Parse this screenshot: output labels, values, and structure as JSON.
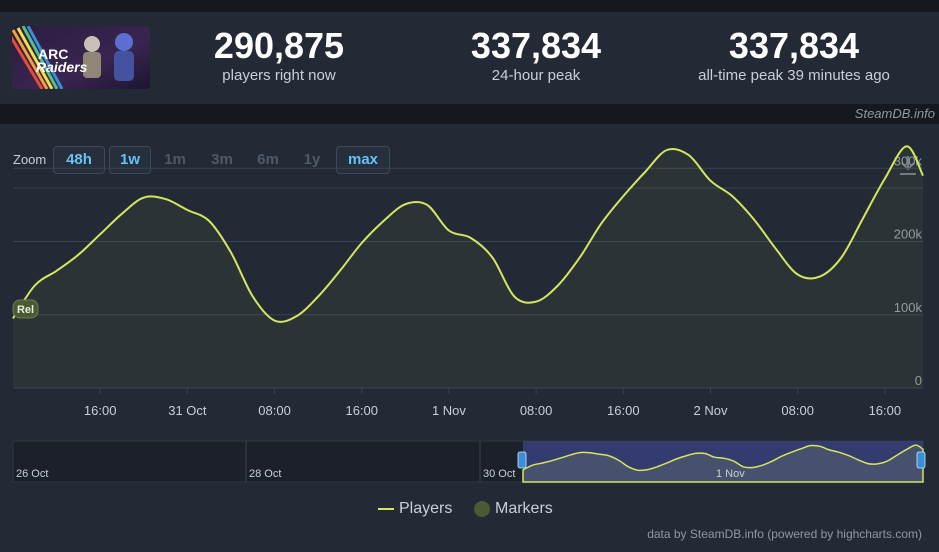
{
  "stats": [
    {
      "value": "290,875",
      "label": "players right now"
    },
    {
      "value": "337,834",
      "label": "24-hour peak"
    },
    {
      "value": "337,834",
      "label": "all-time peak 39 minutes ago"
    }
  ],
  "thumbnail": {
    "title": "ARC Raiders"
  },
  "credit": "SteamDB.info",
  "zoom": {
    "label": "Zoom",
    "options": [
      {
        "label": "48h",
        "active": true
      },
      {
        "label": "1w",
        "active": true
      },
      {
        "label": "1m",
        "active": false
      },
      {
        "label": "3m",
        "active": false
      },
      {
        "label": "6m",
        "active": false
      },
      {
        "label": "1y",
        "active": false
      },
      {
        "label": "max",
        "active": true
      }
    ]
  },
  "chart_data": {
    "type": "line",
    "series": [
      {
        "name": "Players",
        "color": "#d2e75f",
        "x": [
          "10-30 08:00",
          "10-30 10:00",
          "10-30 12:00",
          "10-30 14:00",
          "10-30 16:00",
          "10-30 18:00",
          "10-30 20:00",
          "10-30 22:00",
          "10-31 00:00",
          "10-31 02:00",
          "10-31 04:00",
          "10-31 06:00",
          "10-31 08:00",
          "10-31 10:00",
          "10-31 12:00",
          "10-31 14:00",
          "10-31 16:00",
          "10-31 18:00",
          "10-31 20:00",
          "10-31 22:00",
          "11-01 00:00",
          "11-01 02:00",
          "11-01 04:00",
          "11-01 06:00",
          "11-01 08:00",
          "11-01 10:00",
          "11-01 12:00",
          "11-01 14:00",
          "11-01 16:00",
          "11-01 18:00",
          "11-01 20:00",
          "11-01 22:00",
          "11-02 00:00",
          "11-02 02:00",
          "11-02 04:00",
          "11-02 06:00",
          "11-02 08:00",
          "11-02 10:00",
          "11-02 12:00",
          "11-02 14:00",
          "11-02 16:00",
          "11-02 18:00",
          "11-02 19:30"
        ],
        "values": [
          95000,
          140000,
          160000,
          182000,
          210000,
          238000,
          260000,
          258000,
          243000,
          228000,
          185000,
          125000,
          92000,
          98000,
          125000,
          160000,
          198000,
          228000,
          251000,
          250000,
          215000,
          205000,
          178000,
          125000,
          118000,
          140000,
          178000,
          225000,
          262000,
          295000,
          325000,
          318000,
          283000,
          262000,
          230000,
          190000,
          155000,
          152000,
          178000,
          232000,
          286000,
          330000,
          290000
        ]
      }
    ],
    "markers": [
      {
        "label": "Rel",
        "name": "Markers"
      }
    ],
    "yticks": [
      "0",
      "100k",
      "200k",
      "300k"
    ],
    "xticks": [
      "16:00",
      "31 Oct",
      "08:00",
      "16:00",
      "1 Nov",
      "08:00",
      "16:00",
      "2 Nov",
      "08:00",
      "16:00"
    ],
    "ylim": [
      0,
      340000
    ],
    "navigator_labels": [
      "26 Oct",
      "28 Oct",
      "30 Oct",
      "1 Nov"
    ],
    "legend": [
      {
        "label": "Players"
      },
      {
        "label": "Markers"
      }
    ],
    "grid": true
  },
  "footer": "data by SteamDB.info (powered by highcharts.com)"
}
